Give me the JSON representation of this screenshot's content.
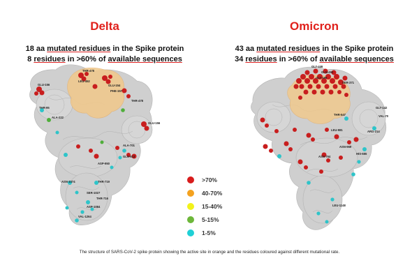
{
  "delta": {
    "title": "Delta",
    "stat_1_count": "18 aa",
    "stat_1_emph": "mutated residues",
    "stat_1_rest": "in the Spike protein",
    "stat_2_count": "8",
    "stat_2_emph": "residues",
    "stat_2_mid": "in >60% of",
    "stat_2_emph2": "available sequences"
  },
  "omicron": {
    "title": "Omicron",
    "stat_1_count": "43 aa",
    "stat_1_emph": "mutated residues",
    "stat_1_rest": "in the Spike protein",
    "stat_2_count": "34",
    "stat_2_emph": "residues",
    "stat_2_mid": "in >60% of",
    "stat_2_emph2": "available sequences"
  },
  "colors": {
    "title_red": "#e0201b",
    "protein_grey": "#cfcfcf",
    "active_site_orange": "#f2c98a",
    "gt70": "#c81e1e",
    "r40_70": "#f5a623",
    "r15_40": "#f5f520",
    "r5_15": "#6cbf3a",
    "r1_5": "#2ec4c9"
  },
  "legend": [
    {
      "label": ">70%",
      "color": "#d81c1c"
    },
    {
      "label": "40-70%",
      "color": "#f4a21f"
    },
    {
      "label": "15-40%",
      "color": "#f2f21a"
    },
    {
      "label": "5-15%",
      "color": "#6db73a"
    },
    {
      "label": "1-5%",
      "color": "#1fd0d6"
    }
  ],
  "delta_labels": {
    "l1": "THR-478",
    "l2": "GLU-156",
    "l3": "LEU-452",
    "l4": "GLU-154",
    "l5": "PHE-157",
    "l6": "THR-478",
    "l7": "ALA-222",
    "l8": "GLU-156",
    "l9": "THR-95",
    "l10": "ALA-701",
    "l11": "GLN-613",
    "l12": "ASP-950",
    "l13": "THR-719",
    "l14": "SER-1027",
    "l15": "THR-716",
    "l16": "ASP-1084",
    "l17": "VAL-1264",
    "l18": "ASN-1074"
  },
  "omicron_labels": {
    "l1": "GLY-446",
    "l2": "GLN-493",
    "l3": "GLY-496",
    "l4": "SER-371",
    "l5": "THR-547",
    "l6": "GLY-142",
    "l7": "VAL-70",
    "l8": "ARG-214",
    "l9": "LEU-981",
    "l10": "ASN-969",
    "l11": "HIS-655",
    "l12": "ASN-764",
    "l13": "LEU-1148"
  },
  "caption": "The structure of SARS-CoV-2 spike protein showing the active site in orange and the residues coloured against different mutational rate."
}
